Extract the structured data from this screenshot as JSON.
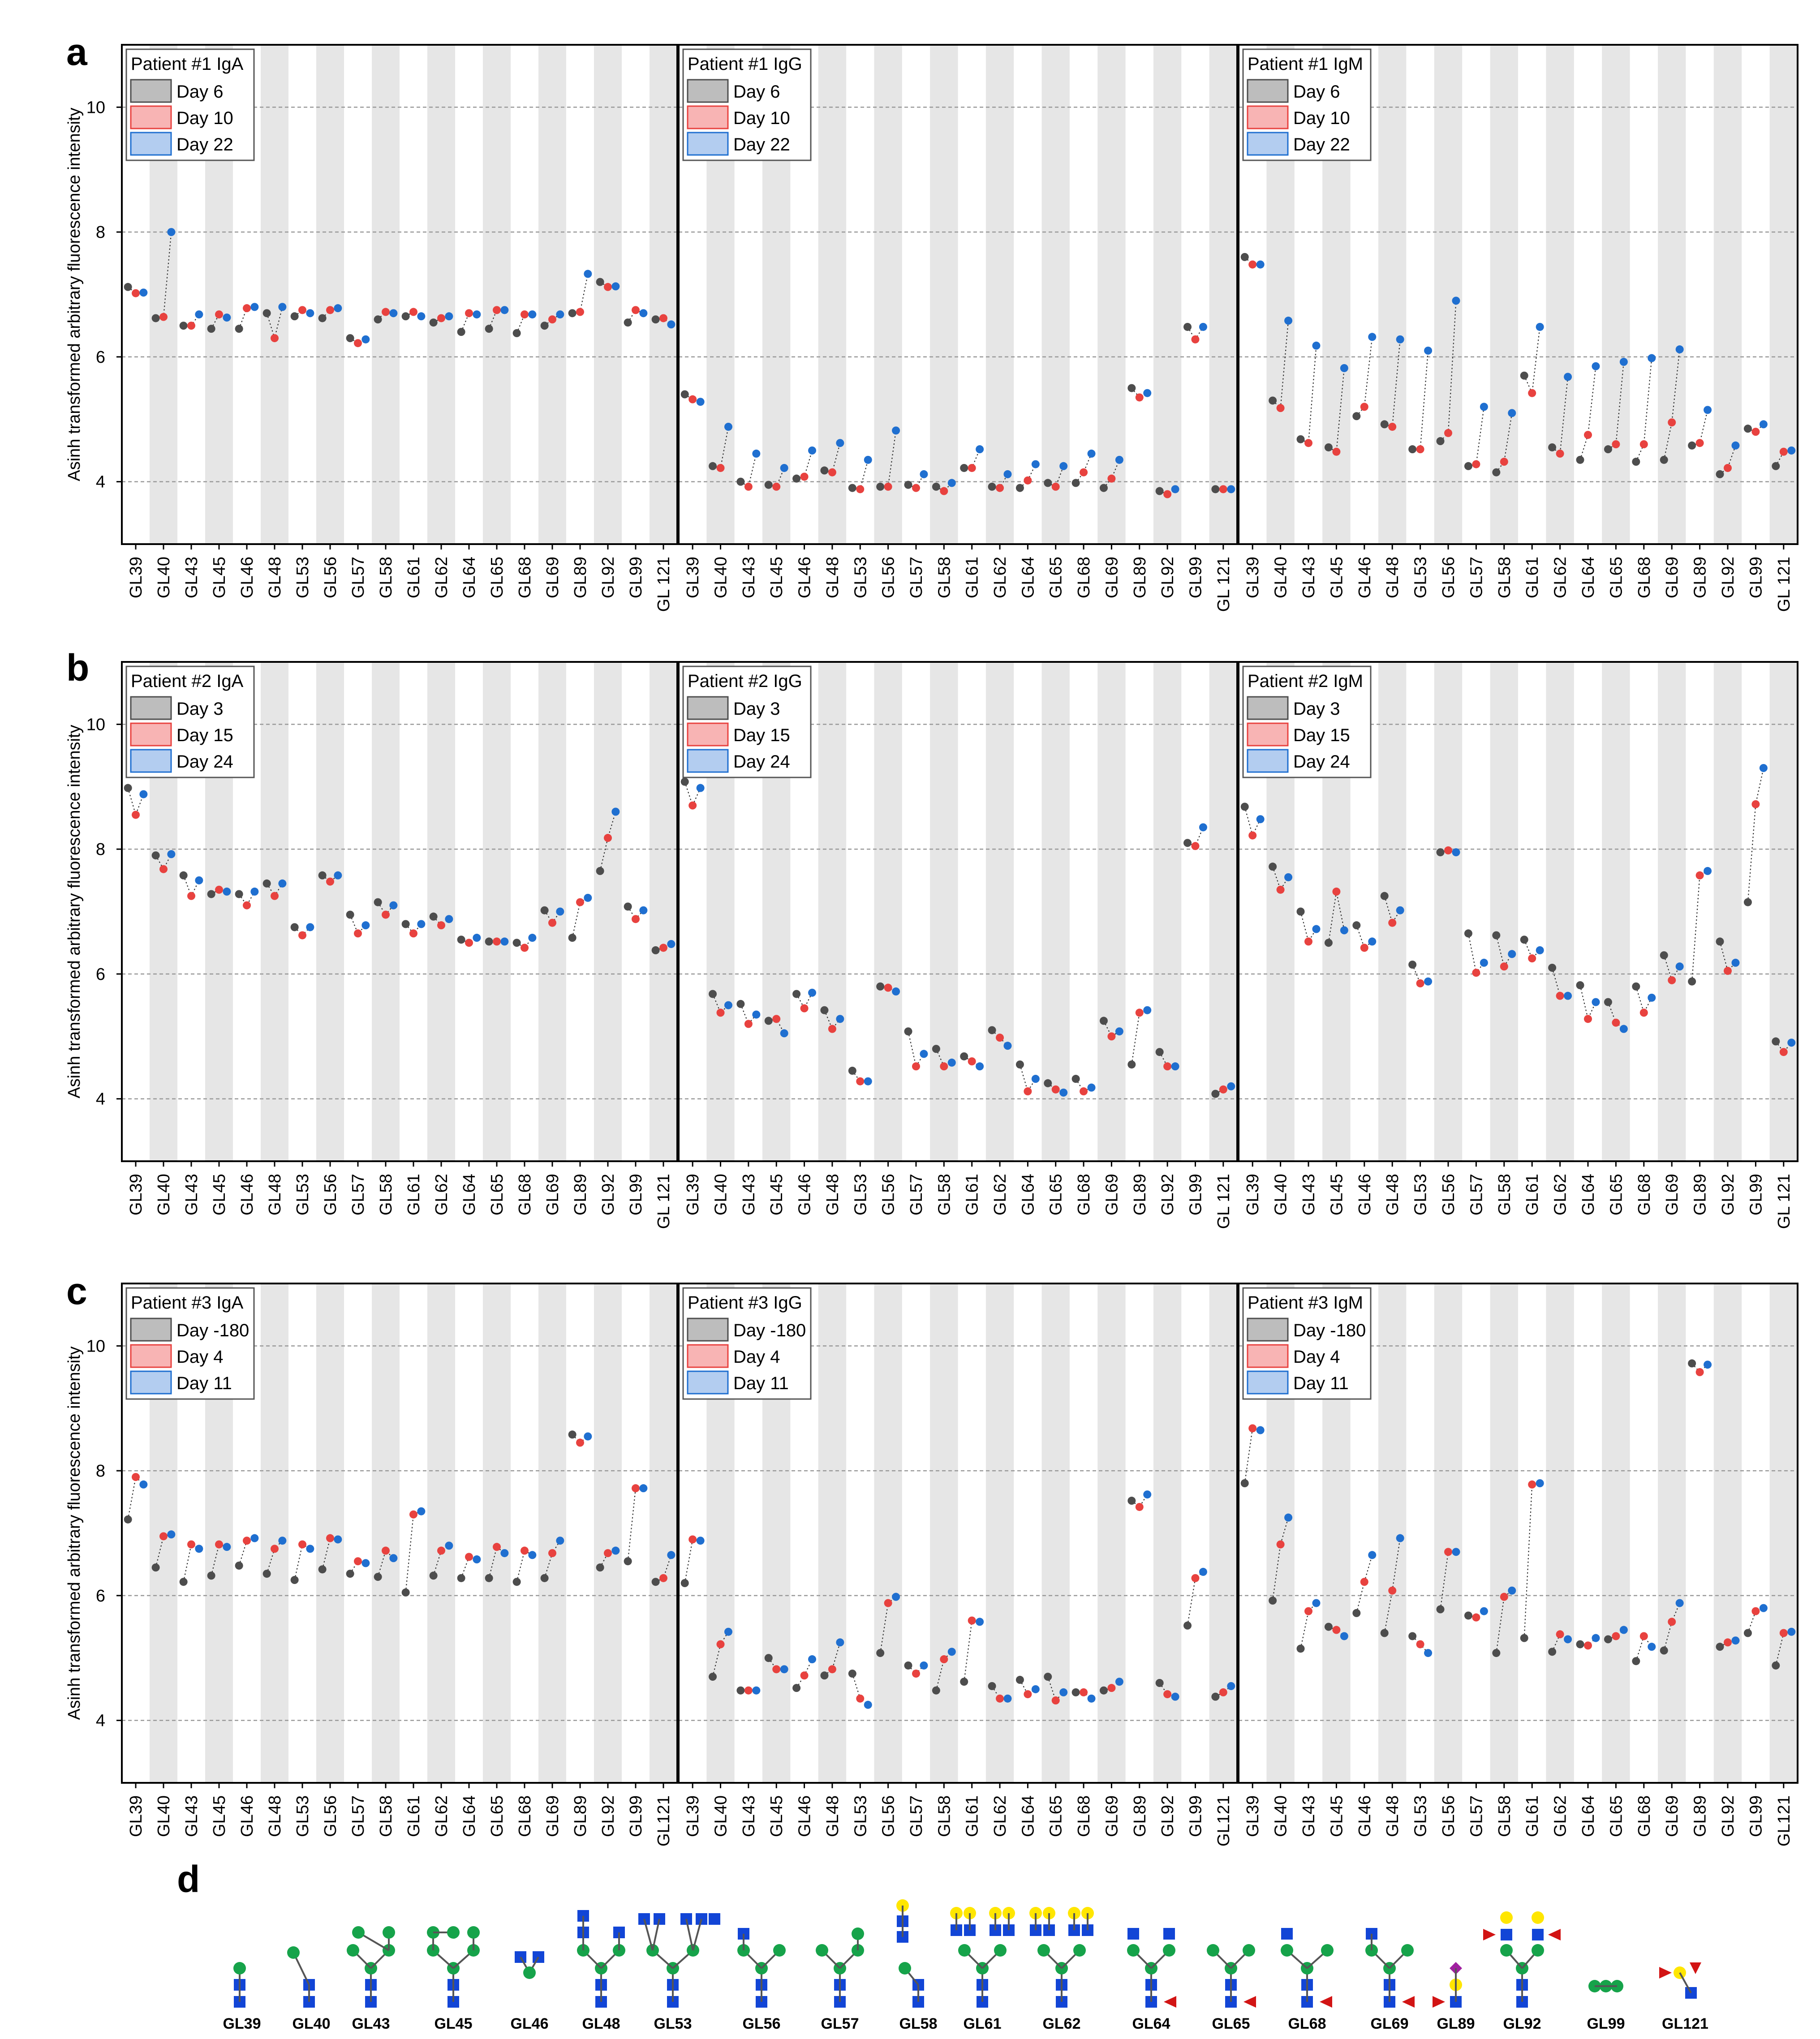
{
  "figure": {
    "y_axis_title": "Asinh transformed arbitrary fluorescence intensity",
    "glycan_panel_letter": "d"
  },
  "glycan_labels": [
    "GL39",
    "GL40",
    "GL43",
    "GL45",
    "GL46",
    "GL48",
    "GL53",
    "GL56",
    "GL57",
    "GL58",
    "GL61",
    "GL62",
    "GL64",
    "GL65",
    "GL68",
    "GL69",
    "GL89",
    "GL92",
    "GL99",
    "GL121"
  ],
  "colors": {
    "grey": "#4d4d4d",
    "red": "#e8423f",
    "blue": "#1f6fd0",
    "band": "#e6e6e6",
    "legend_grey": "#bdbdbd",
    "legend_red": "#f8b4b4",
    "legend_blue": "#b3cdf0",
    "glc_green": "#16a34a",
    "glcnac_blue": "#1245d6",
    "gal_yellow": "#ffe600",
    "fuc_red": "#d21414",
    "sia_purple": "#a020a0"
  },
  "chart_data": [
    {
      "type": "scatter",
      "panel": "a",
      "ylabel": "Asinh transformed arbitrary fluorescence intensity",
      "ylim": [
        3,
        11
      ],
      "yticks": [
        4,
        6,
        8,
        10
      ],
      "grid": "horizontal dashed",
      "categories": [
        "GL39",
        "GL40",
        "GL43",
        "GL45",
        "GL46",
        "GL48",
        "GL53",
        "GL56",
        "GL57",
        "GL58",
        "GL61",
        "GL62",
        "GL64",
        "GL65",
        "GL68",
        "GL69",
        "GL89",
        "GL92",
        "GL99",
        "GL 121"
      ],
      "legend_position": "top-left",
      "subplots": [
        {
          "title": "Patient #1 IgA",
          "series": [
            {
              "name": "Day 6",
              "values": [
                7.12,
                6.62,
                6.5,
                6.45,
                6.45,
                6.7,
                6.65,
                6.62,
                6.3,
                6.6,
                6.65,
                6.55,
                6.4,
                6.45,
                6.38,
                6.5,
                6.7,
                7.2,
                6.55,
                6.6
              ]
            },
            {
              "name": "Day 10",
              "values": [
                7.02,
                6.64,
                6.5,
                6.68,
                6.78,
                6.3,
                6.75,
                6.75,
                6.22,
                6.72,
                6.72,
                6.62,
                6.7,
                6.75,
                6.68,
                6.6,
                6.72,
                7.12,
                6.75,
                6.62
              ]
            },
            {
              "name": "Day 22",
              "values": [
                7.03,
                8.0,
                6.68,
                6.63,
                6.8,
                6.8,
                6.7,
                6.78,
                6.28,
                6.7,
                6.65,
                6.65,
                6.68,
                6.75,
                6.68,
                6.68,
                7.33,
                7.13,
                6.7,
                6.52
              ]
            }
          ]
        },
        {
          "title": "Patient #1 IgG",
          "series": [
            {
              "name": "Day 6",
              "values": [
                5.4,
                4.25,
                4.0,
                3.95,
                4.05,
                4.18,
                3.9,
                3.92,
                3.95,
                3.92,
                4.22,
                3.92,
                3.9,
                3.98,
                3.98,
                3.9,
                5.5,
                3.85,
                6.48,
                3.88
              ]
            },
            {
              "name": "Day 10",
              "values": [
                5.32,
                4.22,
                3.92,
                3.92,
                4.08,
                4.15,
                3.88,
                3.92,
                3.9,
                3.85,
                4.22,
                3.9,
                4.02,
                3.92,
                4.15,
                4.05,
                5.35,
                3.8,
                6.28,
                3.88
              ]
            },
            {
              "name": "Day 22",
              "values": [
                5.28,
                4.88,
                4.45,
                4.22,
                4.5,
                4.62,
                4.35,
                4.82,
                4.12,
                3.98,
                4.52,
                4.12,
                4.28,
                4.25,
                4.45,
                4.35,
                5.42,
                3.88,
                6.48,
                3.88
              ]
            }
          ]
        },
        {
          "title": "Patient #1 IgM",
          "series": [
            {
              "name": "Day 6",
              "values": [
                7.6,
                5.3,
                4.68,
                4.55,
                5.05,
                4.92,
                4.52,
                4.65,
                4.25,
                4.15,
                5.7,
                4.55,
                4.35,
                4.52,
                4.32,
                4.35,
                4.58,
                4.12,
                4.85,
                4.25
              ]
            },
            {
              "name": "Day 10",
              "values": [
                7.48,
                5.18,
                4.62,
                4.48,
                5.2,
                4.88,
                4.52,
                4.78,
                4.28,
                4.32,
                5.42,
                4.45,
                4.75,
                4.6,
                4.6,
                4.95,
                4.62,
                4.22,
                4.8,
                4.48
              ]
            },
            {
              "name": "Day 22",
              "values": [
                7.48,
                6.58,
                6.18,
                5.82,
                6.32,
                6.28,
                6.1,
                6.9,
                5.2,
                5.1,
                6.48,
                5.68,
                5.85,
                5.92,
                5.98,
                6.12,
                5.15,
                4.58,
                4.92,
                4.5
              ]
            }
          ]
        }
      ]
    },
    {
      "type": "scatter",
      "panel": "b",
      "ylabel": "Asinh transformed arbitrary fluorescence intensity",
      "ylim": [
        3,
        11
      ],
      "yticks": [
        4,
        6,
        8,
        10
      ],
      "grid": "horizontal dashed",
      "categories": [
        "GL39",
        "GL40",
        "GL43",
        "GL45",
        "GL46",
        "GL48",
        "GL53",
        "GL56",
        "GL57",
        "GL58",
        "GL61",
        "GL62",
        "GL64",
        "GL65",
        "GL68",
        "GL69",
        "GL89",
        "GL92",
        "GL99",
        "GL 121"
      ],
      "legend_position": "top-left",
      "subplots": [
        {
          "title": "Patient #2 IgA",
          "series": [
            {
              "name": "Day 3",
              "values": [
                8.98,
                7.9,
                7.58,
                7.28,
                7.28,
                7.45,
                6.75,
                7.58,
                6.95,
                7.15,
                6.8,
                6.92,
                6.55,
                6.52,
                6.5,
                7.02,
                6.58,
                7.65,
                7.08,
                6.38
              ]
            },
            {
              "name": "Day 15",
              "values": [
                8.55,
                7.68,
                7.25,
                7.35,
                7.1,
                7.25,
                6.62,
                7.48,
                6.65,
                6.95,
                6.65,
                6.78,
                6.5,
                6.52,
                6.42,
                6.82,
                7.15,
                8.18,
                6.88,
                6.42
              ]
            },
            {
              "name": "Day 24",
              "values": [
                8.88,
                7.92,
                7.5,
                7.32,
                7.32,
                7.45,
                6.75,
                7.58,
                6.78,
                7.1,
                6.8,
                6.88,
                6.58,
                6.52,
                6.58,
                7.0,
                7.22,
                8.6,
                7.02,
                6.48
              ]
            }
          ]
        },
        {
          "title": "Patient #2 IgG",
          "series": [
            {
              "name": "Day 3",
              "values": [
                9.08,
                5.68,
                5.52,
                5.25,
                5.68,
                5.42,
                4.45,
                5.8,
                5.08,
                4.8,
                4.68,
                5.1,
                4.55,
                4.25,
                4.32,
                5.25,
                4.55,
                4.75,
                8.1,
                4.08
              ]
            },
            {
              "name": "Day 15",
              "values": [
                8.7,
                5.38,
                5.2,
                5.28,
                5.45,
                5.12,
                4.28,
                5.78,
                4.52,
                4.52,
                4.6,
                4.98,
                4.12,
                4.15,
                4.12,
                5.0,
                5.38,
                4.52,
                8.05,
                4.15
              ]
            },
            {
              "name": "Day 24",
              "values": [
                8.98,
                5.5,
                5.35,
                5.05,
                5.7,
                5.28,
                4.28,
                5.72,
                4.72,
                4.58,
                4.52,
                4.85,
                4.32,
                4.1,
                4.18,
                5.08,
                5.42,
                4.52,
                8.35,
                4.2
              ]
            }
          ]
        },
        {
          "title": "Patient #2 IgM",
          "series": [
            {
              "name": "Day 3",
              "values": [
                8.68,
                7.72,
                7.0,
                6.5,
                6.78,
                7.25,
                6.15,
                7.95,
                6.65,
                6.62,
                6.55,
                6.1,
                5.82,
                5.55,
                5.8,
                6.3,
                5.88,
                6.52,
                7.15,
                4.92
              ]
            },
            {
              "name": "Day 15",
              "values": [
                8.22,
                7.35,
                6.52,
                7.32,
                6.42,
                6.82,
                5.85,
                7.98,
                6.02,
                6.12,
                6.25,
                5.65,
                5.28,
                5.22,
                5.38,
                5.9,
                7.58,
                6.05,
                8.72,
                4.75
              ]
            },
            {
              "name": "Day 24",
              "values": [
                8.48,
                7.55,
                6.72,
                6.7,
                6.52,
                7.02,
                5.88,
                7.95,
                6.18,
                6.32,
                6.38,
                5.65,
                5.55,
                5.12,
                5.62,
                6.12,
                7.65,
                6.18,
                9.3,
                4.9
              ]
            }
          ]
        }
      ]
    },
    {
      "type": "scatter",
      "panel": "c",
      "ylabel": "Asinh transformed arbitrary fluorescence intensity",
      "ylim": [
        3,
        11
      ],
      "yticks": [
        4,
        6,
        8,
        10
      ],
      "grid": "horizontal dashed",
      "categories": [
        "GL39",
        "GL40",
        "GL43",
        "GL45",
        "GL46",
        "GL48",
        "GL53",
        "GL56",
        "GL57",
        "GL58",
        "GL61",
        "GL62",
        "GL64",
        "GL65",
        "GL68",
        "GL69",
        "GL89",
        "GL92",
        "GL99",
        "GL121"
      ],
      "legend_position": "top-left",
      "subplots": [
        {
          "title": "Patient #3 IgA",
          "series": [
            {
              "name": "Day -180",
              "values": [
                7.22,
                6.45,
                6.22,
                6.32,
                6.48,
                6.35,
                6.25,
                6.42,
                6.35,
                6.3,
                6.05,
                6.32,
                6.28,
                6.28,
                6.22,
                6.28,
                8.58,
                6.45,
                6.55,
                6.22
              ]
            },
            {
              "name": "Day 4",
              "values": [
                7.9,
                6.95,
                6.82,
                6.82,
                6.88,
                6.75,
                6.82,
                6.92,
                6.55,
                6.72,
                7.3,
                6.72,
                6.62,
                6.78,
                6.72,
                6.68,
                8.45,
                6.68,
                7.72,
                6.28
              ]
            },
            {
              "name": "Day 11",
              "values": [
                7.78,
                6.98,
                6.75,
                6.78,
                6.92,
                6.88,
                6.75,
                6.9,
                6.52,
                6.6,
                7.35,
                6.8,
                6.58,
                6.68,
                6.65,
                6.88,
                8.55,
                6.72,
                7.72,
                6.65
              ]
            }
          ]
        },
        {
          "title": "Patient #3 IgG",
          "series": [
            {
              "name": "Day -180",
              "values": [
                6.2,
                4.7,
                4.48,
                5.0,
                4.52,
                4.72,
                4.75,
                5.08,
                4.88,
                4.48,
                4.62,
                4.55,
                4.65,
                4.7,
                4.45,
                4.48,
                7.52,
                4.6,
                5.52,
                4.38
              ]
            },
            {
              "name": "Day 4",
              "values": [
                6.9,
                5.22,
                4.48,
                4.82,
                4.72,
                4.82,
                4.35,
                5.88,
                4.75,
                4.98,
                5.6,
                4.35,
                4.42,
                4.32,
                4.45,
                4.52,
                7.42,
                4.42,
                6.28,
                4.45
              ]
            },
            {
              "name": "Day 11",
              "values": [
                6.88,
                5.42,
                4.48,
                4.82,
                4.98,
                5.25,
                4.25,
                5.98,
                4.88,
                5.1,
                5.58,
                4.35,
                4.5,
                4.45,
                4.35,
                4.62,
                7.62,
                4.38,
                6.38,
                4.55
              ]
            }
          ]
        },
        {
          "title": "Patient #3 IgM",
          "series": [
            {
              "name": "Day -180",
              "values": [
                7.8,
                5.92,
                5.15,
                5.5,
                5.72,
                5.4,
                5.35,
                5.78,
                5.68,
                5.08,
                5.32,
                5.1,
                5.22,
                5.3,
                4.95,
                5.12,
                9.72,
                5.18,
                5.4,
                4.88
              ]
            },
            {
              "name": "Day 4",
              "values": [
                8.68,
                6.82,
                5.75,
                5.45,
                6.22,
                6.08,
                5.22,
                6.7,
                5.65,
                5.98,
                7.78,
                5.38,
                5.2,
                5.35,
                5.35,
                5.58,
                9.58,
                5.25,
                5.75,
                5.4
              ]
            },
            {
              "name": "Day 11",
              "values": [
                8.65,
                7.25,
                5.88,
                5.35,
                6.65,
                6.92,
                5.08,
                6.7,
                5.75,
                6.08,
                7.8,
                5.3,
                5.32,
                5.45,
                5.18,
                5.88,
                9.7,
                5.28,
                5.8,
                5.42
              ]
            }
          ]
        }
      ]
    }
  ]
}
